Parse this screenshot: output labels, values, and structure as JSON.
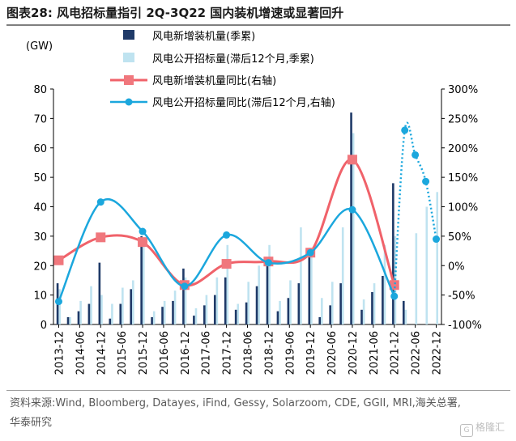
{
  "header": {
    "title": "图表28:  风电招标量指引 2Q-3Q22 国内装机增速或显著回升"
  },
  "chart_data": {
    "type": "bar",
    "y_unit_label": "(GW)",
    "ylim": [
      0,
      80
    ],
    "yticks": [
      0,
      10,
      20,
      30,
      40,
      50,
      60,
      70,
      80
    ],
    "y2lim": [
      -100,
      300
    ],
    "y2ticks": [
      "-100%",
      "-50%",
      "0%",
      "50%",
      "100%",
      "150%",
      "200%",
      "250%",
      "300%"
    ],
    "x_tick_labels": [
      "2013-12",
      "2014-06",
      "2014-12",
      "2015-06",
      "2015-12",
      "2016-06",
      "2016-12",
      "2017-06",
      "2017-12",
      "2018-06",
      "2018-12",
      "2019-06",
      "2019-12",
      "2020-06",
      "2020-12",
      "2021-06",
      "2021-12",
      "2022-06",
      "2022-12"
    ],
    "quarters": [
      "2013-12",
      "2014-03",
      "2014-06",
      "2014-09",
      "2014-12",
      "2015-03",
      "2015-06",
      "2015-09",
      "2015-12",
      "2016-03",
      "2016-06",
      "2016-09",
      "2016-12",
      "2017-03",
      "2017-06",
      "2017-09",
      "2017-12",
      "2018-03",
      "2018-06",
      "2018-09",
      "2018-12",
      "2019-03",
      "2019-06",
      "2019-09",
      "2019-12",
      "2020-03",
      "2020-06",
      "2020-09",
      "2020-12",
      "2021-03",
      "2021-06",
      "2021-09",
      "2021-12",
      "2022-03",
      "2022-06",
      "2022-09",
      "2022-12"
    ],
    "legend": [
      "风电新增装机量(季累)",
      "风电公开招标量(滞后12个月,季累)",
      "风电新增装机量同比(右轴)",
      "风电公开招标量同比(滞后12个月,右轴)"
    ],
    "colors": {
      "installed_bar": "#1f3a68",
      "tender_bar": "#bfe3f0",
      "installed_yoy": "#f0626a",
      "installed_yoy_marker": "#f0777d",
      "tender_yoy": "#1ba7dd",
      "axis": "#000000"
    },
    "series": [
      {
        "name": "风电新增装机量(季累)",
        "axis": "left",
        "values": [
          14,
          2.5,
          4.5,
          7,
          21,
          2,
          7,
          12,
          30,
          2.5,
          6,
          8,
          19,
          3,
          6.5,
          10,
          16,
          5,
          7.5,
          13,
          21,
          4.5,
          9,
          14,
          26,
          2.5,
          6.5,
          14,
          72,
          5,
          11,
          16.5,
          48,
          8,
          null,
          null,
          null
        ]
      },
      {
        "name": "风电公开招标量(滞后12个月,季累)",
        "axis": "left",
        "values": [
          12,
          2.5,
          8,
          13,
          10,
          7,
          12.5,
          15,
          29,
          4.5,
          8,
          11.5,
          16,
          5.5,
          10,
          16,
          27,
          7,
          14.5,
          20,
          27,
          8,
          15,
          33,
          24,
          9,
          14.5,
          33,
          65,
          8.5,
          14,
          27,
          30,
          5,
          31,
          40,
          45
        ]
      },
      {
        "name": "风电新增装机量同比(右轴)",
        "axis": "right",
        "points": [
          {
            "x": "2013-12",
            "y": 9
          },
          {
            "x": "2014-12",
            "y": 48
          },
          {
            "x": "2015-12",
            "y": 40
          },
          {
            "x": "2016-12",
            "y": -33
          },
          {
            "x": "2017-12",
            "y": 3
          },
          {
            "x": "2018-12",
            "y": 7
          },
          {
            "x": "2019-12",
            "y": 22
          },
          {
            "x": "2020-12",
            "y": 180
          },
          {
            "x": "2021-12",
            "y": -33
          }
        ]
      },
      {
        "name": "风电公开招标量同比(滞后12个月,右轴)",
        "axis": "right",
        "points": [
          {
            "x": "2013-12",
            "y": -61
          },
          {
            "x": "2014-12",
            "y": 108
          },
          {
            "x": "2015-12",
            "y": 58
          },
          {
            "x": "2016-12",
            "y": -35
          },
          {
            "x": "2017-12",
            "y": 52
          },
          {
            "x": "2018-12",
            "y": 5
          },
          {
            "x": "2019-12",
            "y": 22
          },
          {
            "x": "2020-12",
            "y": 95
          },
          {
            "x": "2021-12",
            "y": -52
          }
        ],
        "forecast_points": [
          {
            "x": "2022-03",
            "y": 230
          },
          {
            "x": "2022-06",
            "y": 188
          },
          {
            "x": "2022-09",
            "y": 143
          },
          {
            "x": "2022-12",
            "y": 45
          }
        ]
      }
    ]
  },
  "footer": {
    "source": "资料来源:Wind, Bloomberg, Datayes, iFind, Gessy, Solarzoom, CDE, GGII, MRI,海关总署,华泰研究",
    "watermark": "格隆汇",
    "watermark_glyph": "G"
  }
}
